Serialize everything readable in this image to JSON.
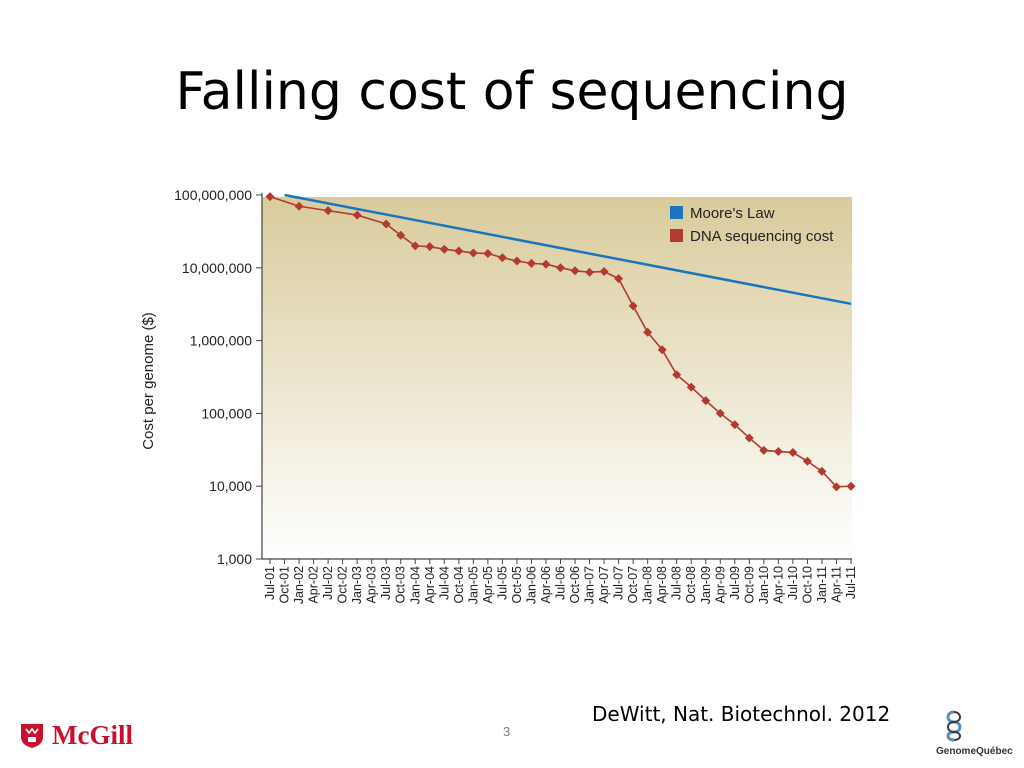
{
  "slide": {
    "title": "Falling cost of sequencing",
    "citation": "DeWitt, Nat. Biotechnol. 2012",
    "page_number": "3",
    "logo_left": "McGill",
    "logo_right": "GenomeQuébec"
  },
  "colors": {
    "moore": "#1a75bc",
    "dna": "#b33a2e",
    "bg_top": "#d9cb9c",
    "bg_bottom": "#ffffff"
  },
  "chart_data": {
    "type": "line",
    "title": "",
    "xlabel": "",
    "ylabel": "Cost per genome ($)",
    "y_scale": "log",
    "ylim": [
      1000,
      100000000
    ],
    "yticks": [
      "1,000",
      "10,000",
      "100,000",
      "1,000,000",
      "10,000,000",
      "100,000,000"
    ],
    "ytick_values": [
      1000,
      10000,
      100000,
      1000000,
      10000000,
      100000000
    ],
    "categories": [
      "Jul-01",
      "Oct-01",
      "Jan-02",
      "Apr-02",
      "Jul-02",
      "Oct-02",
      "Jan-03",
      "Apr-03",
      "Jul-03",
      "Oct-03",
      "Jan-04",
      "Apr-04",
      "Jul-04",
      "Oct-04",
      "Jan-05",
      "Apr-05",
      "Jul-05",
      "Oct-05",
      "Jan-06",
      "Apr-06",
      "Jul-06",
      "Oct-06",
      "Jan-07",
      "Apr-07",
      "Jul-07",
      "Oct-07",
      "Jan-08",
      "Apr-08",
      "Jul-08",
      "Oct-08",
      "Jan-09",
      "Apr-09",
      "Jul-09",
      "Oct-09",
      "Jan-10",
      "Apr-10",
      "Jul-10",
      "Oct-10",
      "Jan-11",
      "Apr-11",
      "Jul-11"
    ],
    "legend_position": "top-right",
    "series": [
      {
        "name": "Moore's Law",
        "style": "line",
        "x": [
          "Oct-01",
          "Jul-11"
        ],
        "values": [
          100000000,
          3200000
        ]
      },
      {
        "name": "DNA sequencing cost",
        "style": "line-markers",
        "x": [
          "Jul-01",
          "Jan-02",
          "Jul-02",
          "Jan-03",
          "Jul-03",
          "Oct-03",
          "Jan-04",
          "Apr-04",
          "Jul-04",
          "Oct-04",
          "Jan-05",
          "Apr-05",
          "Jul-05",
          "Oct-05",
          "Jan-06",
          "Apr-06",
          "Jul-06",
          "Oct-06",
          "Jan-07",
          "Apr-07",
          "Jul-07",
          "Oct-07",
          "Jan-08",
          "Apr-08",
          "Jul-08",
          "Oct-08",
          "Jan-09",
          "Apr-09",
          "Jul-09",
          "Oct-09",
          "Jan-10",
          "Apr-10",
          "Jul-10",
          "Oct-10",
          "Jan-11",
          "Apr-11",
          "Jul-11"
        ],
        "values": [
          95000000,
          70000000,
          61000000,
          53000000,
          40000000,
          28000000,
          20000000,
          19500000,
          18000000,
          17000000,
          16000000,
          15700000,
          13800000,
          12400000,
          11500000,
          11200000,
          10000000,
          9100000,
          8700000,
          8900000,
          7100000,
          3000000,
          1300000,
          750000,
          340000,
          230000,
          150000,
          100000,
          70000,
          46000,
          31000,
          30000,
          29000,
          22000,
          16000,
          9800,
          10000
        ]
      }
    ]
  }
}
